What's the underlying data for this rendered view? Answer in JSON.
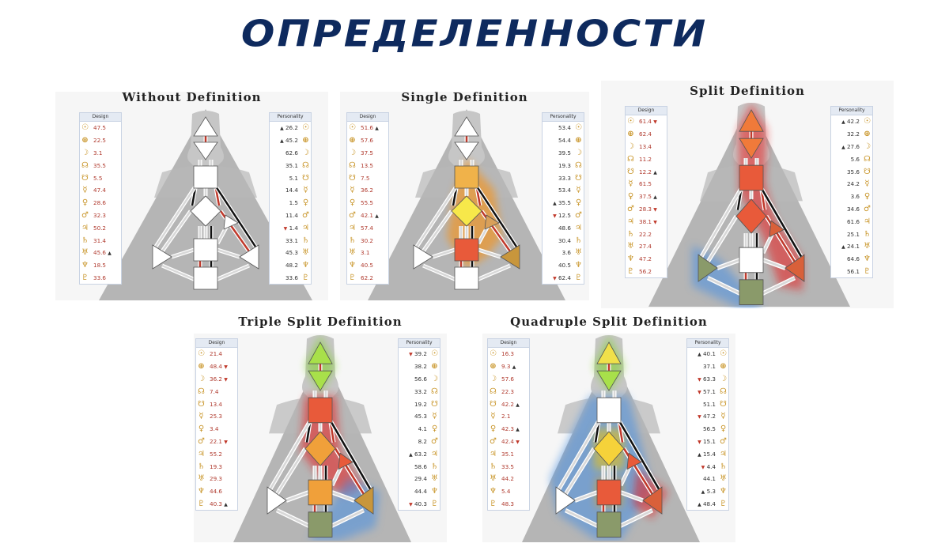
{
  "page_title": "ОПРЕДЕЛЕННОСТИ",
  "planet_icons": [
    "sun-icon",
    "earth-icon",
    "moon-icon",
    "north-node-icon",
    "south-node-icon",
    "mercury-icon",
    "venus-icon",
    "mars-icon",
    "jupiter-icon",
    "saturn-icon",
    "uranus-icon",
    "neptune-icon",
    "pluto-icon"
  ],
  "planet_glyphs": [
    "☉",
    "⊕",
    "☽",
    "☊",
    "☋",
    "☿",
    "♀",
    "♂",
    "♃",
    "♄",
    "♅",
    "♆",
    "♇"
  ],
  "design_header": "Design",
  "personality_header": "Personality",
  "panels": [
    {
      "title": "Without Definition",
      "design": [
        "47.5",
        "22.5",
        "3.1",
        "35.5",
        "5.5",
        "47.4",
        "28.6",
        "32.3",
        "50.2",
        "31.4",
        "45.6 ▲",
        "18.5",
        "33.6"
      ],
      "personality": [
        "▲ 26.2",
        "▲ 45.2",
        "62.6",
        "35.1",
        "5.1",
        "14.4",
        "1.5",
        "11.4",
        "▼ 1.4",
        "33.1",
        "45.3",
        "48.2",
        "33.6"
      ]
    },
    {
      "title": "Single Definition",
      "design": [
        "51.6 ▲",
        "57.6",
        "37.5",
        "13.5",
        "7.5",
        "36.2",
        "55.5",
        "42.1 ▲",
        "57.4",
        "30.2",
        "3.1",
        "40.5",
        "62.2"
      ],
      "personality": [
        "53.4",
        "54.4",
        "39.5",
        "19.3",
        "33.3",
        "53.4",
        "▲ 35.5",
        "▼ 12.5",
        "48.6",
        "30.4",
        "3.6",
        "40.5",
        "▼ 62.4"
      ]
    },
    {
      "title": "Split Definition",
      "design": [
        "61.4 ▼",
        "62.4",
        "13.4",
        "11.2",
        "12.2 ▲",
        "61.5",
        "37.5 ▲",
        "28.3 ▼",
        "38.1 ▼",
        "22.2",
        "27.4",
        "47.2",
        "56.2"
      ],
      "personality": [
        "▲ 42.2",
        "32.2",
        "▲ 27.6",
        "5.6",
        "35.6",
        "24.2",
        "3.6",
        "34.6",
        "61.6",
        "25.1",
        "▲ 24.1",
        "64.6",
        "56.1"
      ]
    },
    {
      "title": "Triple Split Definition",
      "design": [
        "21.4",
        "48.4 ▼",
        "36.2 ▼",
        "7.4",
        "13.4",
        "25.3",
        "3.4",
        "22.1 ▼",
        "55.2",
        "19.3",
        "29.3",
        "44.6",
        "40.3 ▲"
      ],
      "personality": [
        "▼ 39.2",
        "38.2",
        "56.6",
        "33.2",
        "19.2",
        "45.3",
        "4.1",
        "8.2",
        "▲ 63.2",
        "58.6",
        "29.4",
        "44.4",
        "▼ 40.3"
      ]
    },
    {
      "title": "Quadruple Split Definition",
      "design": [
        "16.3",
        "9.3 ▲",
        "57.6",
        "22.3",
        "42.2 ▲",
        "2.1",
        "42.3 ▲",
        "42.4 ▼",
        "35.1",
        "33.5",
        "44.2",
        "5.4",
        "48.3"
      ],
      "personality": [
        "▲ 40.1",
        "37.1",
        "▼ 63.3",
        "▼ 57.1",
        "51.1",
        "▼ 47.2",
        "56.5",
        "▼ 15.1",
        "▲ 15.4",
        "▼ 4.4",
        "44.1",
        "▲ 5.3",
        "▲ 48.4"
      ]
    }
  ]
}
